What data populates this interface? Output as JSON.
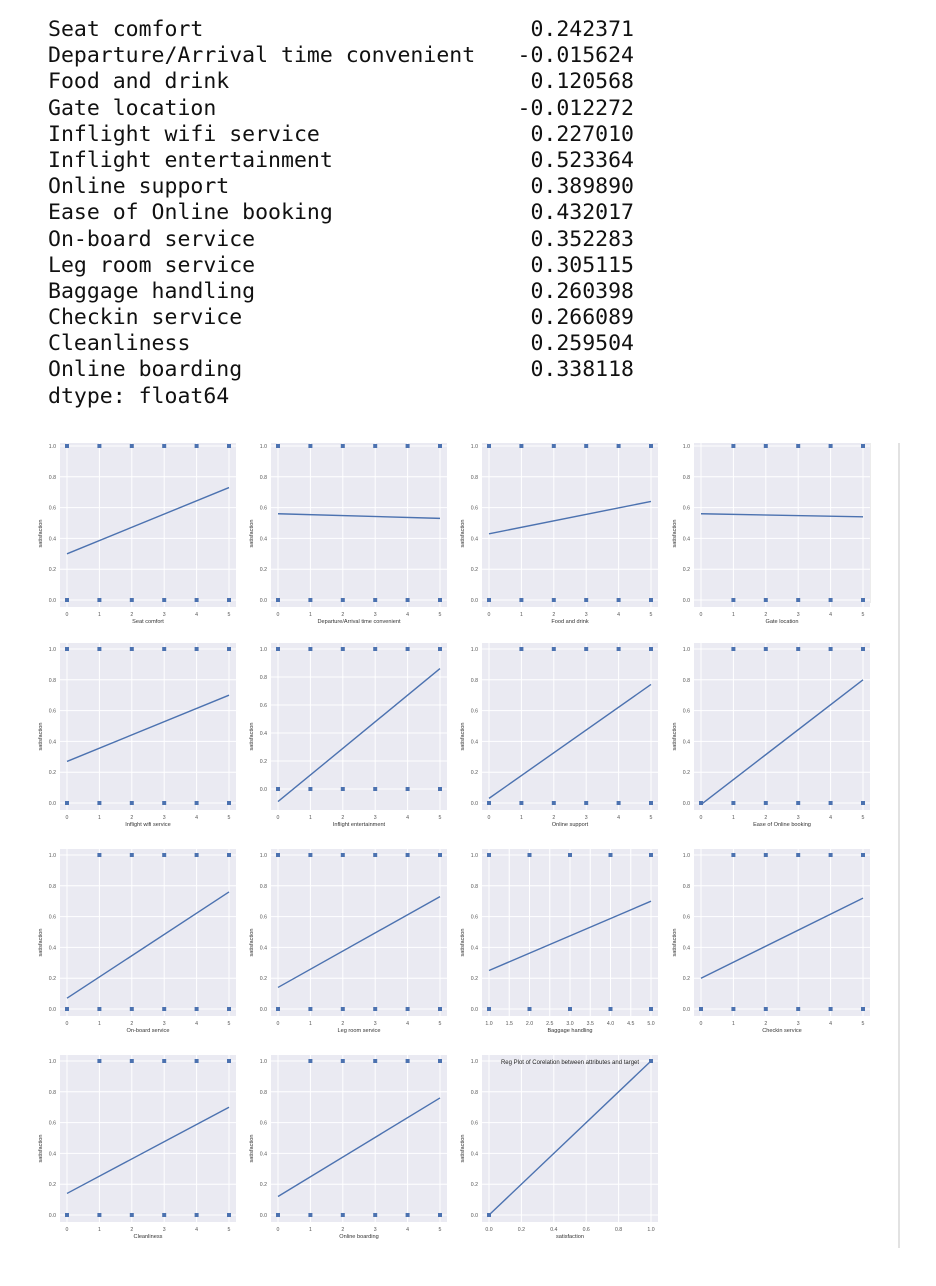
{
  "correlation_output": {
    "rows": [
      {
        "label": "Seat comfort",
        "value": "0.242371"
      },
      {
        "label": "Departure/Arrival time convenient",
        "value": "-0.015624"
      },
      {
        "label": "Food and drink",
        "value": "0.120568"
      },
      {
        "label": "Gate location",
        "value": "-0.012272"
      },
      {
        "label": "Inflight wifi service",
        "value": "0.227010"
      },
      {
        "label": "Inflight entertainment",
        "value": "0.523364"
      },
      {
        "label": "Online support",
        "value": "0.389890"
      },
      {
        "label": "Ease of Online booking",
        "value": "0.432017"
      },
      {
        "label": "On-board service",
        "value": "0.352283"
      },
      {
        "label": "Leg room service",
        "value": "0.305115"
      },
      {
        "label": "Baggage handling",
        "value": "0.260398"
      },
      {
        "label": "Checkin service",
        "value": "0.266089"
      },
      {
        "label": "Cleanliness",
        "value": "0.259504"
      },
      {
        "label": "Online boarding",
        "value": "0.338118"
      }
    ],
    "dtype": "dtype: float64"
  },
  "colors": {
    "panel": "#eaeaf2",
    "grid": "#ffffff",
    "series": "#4c72b0",
    "tick": "#555555"
  },
  "chart_data": [
    {
      "type": "scatter",
      "xlabel": "Seat comfort",
      "ylabel": "satisfaction",
      "xlim": [
        0,
        5
      ],
      "ylim": [
        0,
        1
      ],
      "x_ticks": [
        "0",
        "1",
        "2",
        "3",
        "4",
        "5"
      ],
      "y_ticks": [
        "0.0",
        "0.2",
        "0.4",
        "0.6",
        "0.8",
        "1.0"
      ],
      "points_y0": [
        0,
        1,
        2,
        3,
        4,
        5
      ],
      "points_y1": [
        0,
        1,
        2,
        3,
        4,
        5
      ],
      "fit_line": [
        [
          0,
          0.3
        ],
        [
          5,
          0.73
        ]
      ]
    },
    {
      "type": "scatter",
      "xlabel": "Departure/Arrival time convenient",
      "ylabel": "satisfaction",
      "xlim": [
        0,
        5
      ],
      "ylim": [
        0,
        1
      ],
      "x_ticks": [
        "0",
        "1",
        "2",
        "3",
        "4",
        "5"
      ],
      "y_ticks": [
        "0.0",
        "0.2",
        "0.4",
        "0.6",
        "0.8",
        "1.0"
      ],
      "points_y0": [
        0,
        1,
        2,
        3,
        4,
        5
      ],
      "points_y1": [
        0,
        1,
        2,
        3,
        4,
        5
      ],
      "fit_line": [
        [
          0,
          0.56
        ],
        [
          5,
          0.53
        ]
      ]
    },
    {
      "type": "scatter",
      "xlabel": "Food and drink",
      "ylabel": "satisfaction",
      "xlim": [
        0,
        5
      ],
      "ylim": [
        0,
        1
      ],
      "x_ticks": [
        "0",
        "1",
        "2",
        "3",
        "4",
        "5"
      ],
      "y_ticks": [
        "0.0",
        "0.2",
        "0.4",
        "0.6",
        "0.8",
        "1.0"
      ],
      "points_y0": [
        0,
        1,
        2,
        3,
        4,
        5
      ],
      "points_y1": [
        0,
        1,
        2,
        3,
        4,
        5
      ],
      "fit_line": [
        [
          0,
          0.43
        ],
        [
          5,
          0.64
        ]
      ]
    },
    {
      "type": "scatter",
      "xlabel": "Gate location",
      "ylabel": "satisfaction",
      "xlim": [
        0,
        5
      ],
      "ylim": [
        0,
        1
      ],
      "x_ticks": [
        "0",
        "1",
        "2",
        "3",
        "4",
        "5"
      ],
      "y_ticks": [
        "0.0",
        "0.2",
        "0.4",
        "0.6",
        "0.8",
        "1.0"
      ],
      "points_y0": [
        1,
        2,
        3,
        4,
        5
      ],
      "points_y1": [
        1,
        2,
        3,
        4,
        5
      ],
      "fit_line": [
        [
          0,
          0.56
        ],
        [
          5,
          0.54
        ]
      ]
    },
    {
      "type": "scatter",
      "xlabel": "Inflight wifi service",
      "ylabel": "satisfaction",
      "xlim": [
        0,
        5
      ],
      "ylim": [
        0,
        1
      ],
      "x_ticks": [
        "0",
        "1",
        "2",
        "3",
        "4",
        "5"
      ],
      "y_ticks": [
        "0.0",
        "0.2",
        "0.4",
        "0.6",
        "0.8",
        "1.0"
      ],
      "points_y0": [
        0,
        1,
        2,
        3,
        4,
        5
      ],
      "points_y1": [
        0,
        1,
        2,
        3,
        4,
        5
      ],
      "fit_line": [
        [
          0,
          0.27
        ],
        [
          5,
          0.7
        ]
      ]
    },
    {
      "type": "scatter",
      "xlabel": "Inflight entertainment",
      "ylabel": "satisfaction",
      "xlim": [
        0,
        5
      ],
      "ylim": [
        -0.1,
        1
      ],
      "x_ticks": [
        "0",
        "1",
        "2",
        "3",
        "4",
        "5"
      ],
      "y_ticks": [
        "0.0",
        "0.2",
        "0.4",
        "0.6",
        "0.8",
        "1.0"
      ],
      "points_y0": [
        0,
        1,
        2,
        3,
        4,
        5
      ],
      "points_y1": [
        0,
        1,
        2,
        3,
        4,
        5
      ],
      "fit_line": [
        [
          0,
          -0.09
        ],
        [
          5,
          0.86
        ]
      ]
    },
    {
      "type": "scatter",
      "xlabel": "Online support",
      "ylabel": "satisfaction",
      "xlim": [
        0,
        5
      ],
      "ylim": [
        0,
        1
      ],
      "x_ticks": [
        "0",
        "1",
        "2",
        "3",
        "4",
        "5"
      ],
      "y_ticks": [
        "0.0",
        "0.2",
        "0.4",
        "0.6",
        "0.8",
        "1.0"
      ],
      "points_y0": [
        0,
        1,
        2,
        3,
        4,
        5
      ],
      "points_y1": [
        1,
        2,
        3,
        4,
        5
      ],
      "fit_line": [
        [
          0,
          0.03
        ],
        [
          5,
          0.77
        ]
      ]
    },
    {
      "type": "scatter",
      "xlabel": "Ease of Online booking",
      "ylabel": "satisfaction",
      "xlim": [
        0,
        5
      ],
      "ylim": [
        0,
        1
      ],
      "x_ticks": [
        "0",
        "1",
        "2",
        "3",
        "4",
        "5"
      ],
      "y_ticks": [
        "0.0",
        "0.2",
        "0.4",
        "0.6",
        "0.8",
        "1.0"
      ],
      "points_y0": [
        0,
        1,
        2,
        3,
        4,
        5
      ],
      "points_y1": [
        1,
        2,
        3,
        4,
        5
      ],
      "fit_line": [
        [
          0,
          -0.01
        ],
        [
          5,
          0.8
        ]
      ]
    },
    {
      "type": "scatter",
      "xlabel": "On-board service",
      "ylabel": "satisfaction",
      "xlim": [
        0,
        5
      ],
      "ylim": [
        0,
        1
      ],
      "x_ticks": [
        "0",
        "1",
        "2",
        "3",
        "4",
        "5"
      ],
      "y_ticks": [
        "0.0",
        "0.2",
        "0.4",
        "0.6",
        "0.8",
        "1.0"
      ],
      "points_y0": [
        0,
        1,
        2,
        3,
        4,
        5
      ],
      "points_y1": [
        1,
        2,
        3,
        4,
        5
      ],
      "fit_line": [
        [
          0,
          0.07
        ],
        [
          5,
          0.76
        ]
      ]
    },
    {
      "type": "scatter",
      "xlabel": "Leg room service",
      "ylabel": "satisfaction",
      "xlim": [
        0,
        5
      ],
      "ylim": [
        0,
        1
      ],
      "x_ticks": [
        "0",
        "1",
        "2",
        "3",
        "4",
        "5"
      ],
      "y_ticks": [
        "0.0",
        "0.2",
        "0.4",
        "0.6",
        "0.8",
        "1.0"
      ],
      "points_y0": [
        0,
        1,
        2,
        3,
        4,
        5
      ],
      "points_y1": [
        0,
        1,
        2,
        3,
        4,
        5
      ],
      "fit_line": [
        [
          0,
          0.14
        ],
        [
          5,
          0.73
        ]
      ]
    },
    {
      "type": "scatter",
      "xlabel": "Baggage handling",
      "ylabel": "satisfaction",
      "xlim": [
        1,
        5
      ],
      "ylim": [
        0,
        1
      ],
      "x_ticks": [
        "1.0",
        "1.5",
        "2.0",
        "2.5",
        "3.0",
        "3.5",
        "4.0",
        "4.5",
        "5.0"
      ],
      "y_ticks": [
        "0.0",
        "0.2",
        "0.4",
        "0.6",
        "0.8",
        "1.0"
      ],
      "points_y0": [
        1,
        2,
        3,
        4,
        5
      ],
      "points_y1": [
        1,
        2,
        3,
        4,
        5
      ],
      "fit_line": [
        [
          1,
          0.25
        ],
        [
          5,
          0.7
        ]
      ]
    },
    {
      "type": "scatter",
      "xlabel": "Checkin service",
      "ylabel": "satisfaction",
      "xlim": [
        0,
        5
      ],
      "ylim": [
        0,
        1
      ],
      "x_ticks": [
        "0",
        "1",
        "2",
        "3",
        "4",
        "5"
      ],
      "y_ticks": [
        "0.0",
        "0.2",
        "0.4",
        "0.6",
        "0.8",
        "1.0"
      ],
      "points_y0": [
        0,
        1,
        2,
        3,
        4,
        5
      ],
      "points_y1": [
        1,
        2,
        3,
        4,
        5
      ],
      "fit_line": [
        [
          0,
          0.2
        ],
        [
          5,
          0.72
        ]
      ]
    },
    {
      "type": "scatter",
      "xlabel": "Cleanliness",
      "ylabel": "satisfaction",
      "xlim": [
        0,
        5
      ],
      "ylim": [
        0,
        1
      ],
      "x_ticks": [
        "0",
        "1",
        "2",
        "3",
        "4",
        "5"
      ],
      "y_ticks": [
        "0.0",
        "0.2",
        "0.4",
        "0.6",
        "0.8",
        "1.0"
      ],
      "points_y0": [
        0,
        1,
        2,
        3,
        4,
        5
      ],
      "points_y1": [
        1,
        2,
        3,
        4,
        5
      ],
      "fit_line": [
        [
          0,
          0.14
        ],
        [
          5,
          0.7
        ]
      ]
    },
    {
      "type": "scatter",
      "xlabel": "Online boarding",
      "ylabel": "satisfaction",
      "xlim": [
        0,
        5
      ],
      "ylim": [
        0,
        1
      ],
      "x_ticks": [
        "0",
        "1",
        "2",
        "3",
        "4",
        "5"
      ],
      "y_ticks": [
        "0.0",
        "0.2",
        "0.4",
        "0.6",
        "0.8",
        "1.0"
      ],
      "points_y0": [
        0,
        1,
        2,
        3,
        4,
        5
      ],
      "points_y1": [
        1,
        2,
        3,
        4,
        5
      ],
      "fit_line": [
        [
          0,
          0.12
        ],
        [
          5,
          0.76
        ]
      ]
    },
    {
      "type": "scatter",
      "title": "Reg Plot of Corelation between attributes and target",
      "xlabel": "satisfaction",
      "ylabel": "satisfaction",
      "xlim": [
        0,
        1
      ],
      "ylim": [
        0,
        1
      ],
      "x_ticks": [
        "0.0",
        "0.2",
        "0.4",
        "0.6",
        "0.8",
        "1.0"
      ],
      "y_ticks": [
        "0.0",
        "0.2",
        "0.4",
        "0.6",
        "0.8",
        "1.0"
      ],
      "points_y0": [
        0
      ],
      "points_y1": [
        1
      ],
      "fit_line": [
        [
          0,
          0
        ],
        [
          1,
          1
        ]
      ]
    }
  ]
}
